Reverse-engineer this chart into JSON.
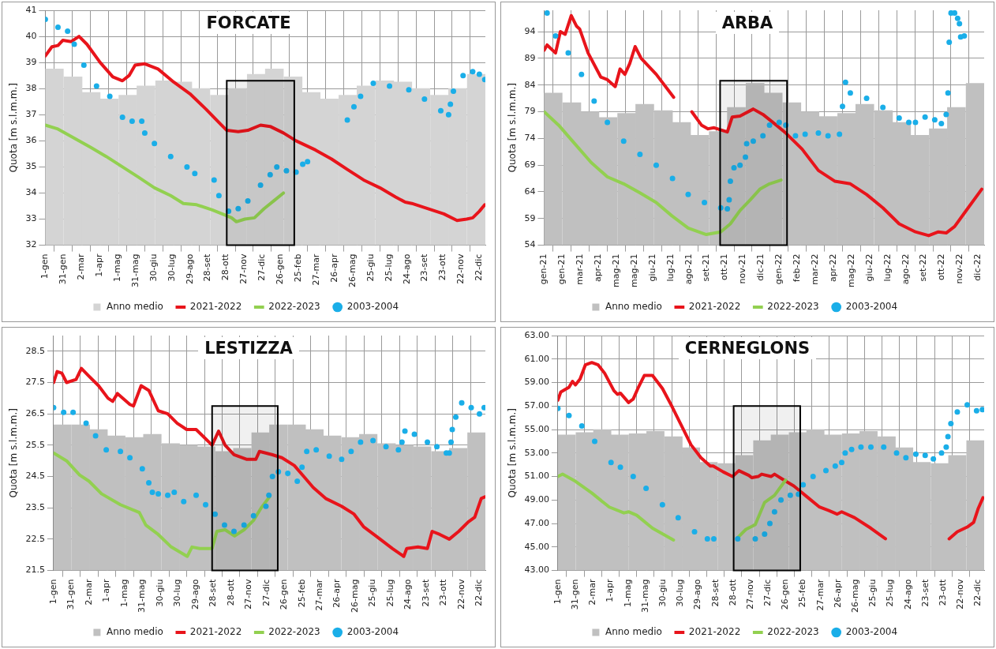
{
  "chart_data": [
    {
      "type": "line",
      "title": "FORCATE",
      "ylabel": "Quota [m s.l.m.m.]",
      "xlim": [
        "2021-01-01",
        "2023-01-01"
      ],
      "ylim": [
        32,
        41
      ],
      "xticks": [
        {
          "value": "2021-01-01",
          "label": "1-gen"
        },
        {
          "value": "2021-01-31",
          "label": "31-gen"
        },
        {
          "value": "2021-03-02",
          "label": "2-mar"
        },
        {
          "value": "2021-04-01",
          "label": "1-apr"
        },
        {
          "value": "2021-05-01",
          "label": "1-mag"
        },
        {
          "value": "2021-05-31",
          "label": "31-mag"
        },
        {
          "value": "2021-06-30",
          "label": "30-giu"
        },
        {
          "value": "2021-07-30",
          "label": "30-lug"
        },
        {
          "value": "2021-08-29",
          "label": "29-ago"
        },
        {
          "value": "2021-09-28",
          "label": "28-set"
        },
        {
          "value": "2021-10-28",
          "label": "28-ott"
        },
        {
          "value": "2021-11-27",
          "label": "27-nov"
        },
        {
          "value": "2021-12-27",
          "label": "27-dic"
        },
        {
          "value": "2022-01-26",
          "label": "26-gen"
        },
        {
          "value": "2022-02-25",
          "label": "25-feb"
        },
        {
          "value": "2022-03-27",
          "label": "27-mar"
        },
        {
          "value": "2022-04-26",
          "label": "26-apr"
        },
        {
          "value": "2022-05-26",
          "label": "26-mag"
        },
        {
          "value": "2022-06-25",
          "label": "25-giu"
        },
        {
          "value": "2022-07-25",
          "label": "25-lug"
        },
        {
          "value": "2022-08-24",
          "label": "24-ago"
        },
        {
          "value": "2022-09-23",
          "label": "23-set"
        },
        {
          "value": "2022-10-23",
          "label": "23-ott"
        },
        {
          "value": "2022-11-22",
          "label": "22-nov"
        },
        {
          "value": "2022-12-22",
          "label": "22-dic"
        }
      ],
      "yticks": [
        32,
        33,
        34,
        35,
        36,
        37,
        38,
        39,
        40,
        41
      ],
      "grid": true,
      "legend": "bottom",
      "bands": [
        {
          "axis": "x",
          "from": "2021-10-29",
          "to": "2022-02-18",
          "color": "#000000"
        }
      ],
      "series": [
        {
          "name": "Anno medio",
          "type": "bar",
          "color": "#d4d4d4",
          "x": [
            "2021-01-16",
            "2021-02-16",
            "2021-03-18",
            "2021-04-17",
            "2021-05-18",
            "2021-06-17",
            "2021-07-18",
            "2021-08-17",
            "2021-09-16",
            "2021-10-17",
            "2021-11-16",
            "2021-12-17",
            "2022-01-16",
            "2022-02-16",
            "2022-03-18",
            "2022-04-17",
            "2022-05-18",
            "2022-06-17",
            "2022-07-18",
            "2022-08-17",
            "2022-09-16",
            "2022-10-17",
            "2022-11-16",
            "2022-12-17"
          ],
          "values": [
            38.75,
            38.45,
            37.85,
            37.6,
            37.75,
            38.1,
            38.3,
            38.25,
            38.0,
            37.75,
            38.0,
            38.55,
            38.75,
            38.45,
            37.85,
            37.6,
            37.75,
            38.1,
            38.3,
            38.25,
            38.0,
            37.75,
            38.0,
            38.55
          ]
        },
        {
          "name": "2021-2022",
          "type": "line",
          "color": "#e8141b",
          "x": [
            "2021-01-01",
            "2021-01-12",
            "2021-01-22",
            "2021-01-30",
            "2021-02-13",
            "2021-02-26",
            "2021-03-11",
            "2021-04-02",
            "2021-04-23",
            "2021-05-09",
            "2021-05-20",
            "2021-05-30",
            "2021-06-15",
            "2021-07-07",
            "2021-08-02",
            "2021-08-29",
            "2021-09-25",
            "2021-10-16",
            "2021-10-29",
            "2021-11-17",
            "2021-12-03",
            "2021-12-24",
            "2022-01-09",
            "2022-01-31",
            "2022-02-21",
            "2022-03-25",
            "2022-04-21",
            "2022-05-17",
            "2022-06-13",
            "2022-07-10",
            "2022-08-05",
            "2022-08-21",
            "2022-09-01",
            "2022-09-28",
            "2022-10-24",
            "2022-11-15",
            "2022-12-01",
            "2022-12-11",
            "2022-12-22",
            "2022-12-31"
          ],
          "values": [
            39.25,
            39.6,
            39.65,
            39.85,
            39.8,
            40.0,
            39.7,
            39.0,
            38.45,
            38.3,
            38.5,
            38.9,
            38.95,
            38.75,
            38.25,
            37.8,
            37.2,
            36.7,
            36.4,
            36.35,
            36.4,
            36.6,
            36.55,
            36.3,
            36.0,
            35.65,
            35.3,
            34.9,
            34.5,
            34.2,
            33.85,
            33.65,
            33.6,
            33.4,
            33.2,
            32.95,
            33.0,
            33.05,
            33.3,
            33.55
          ]
        },
        {
          "name": "2022-2023",
          "type": "line",
          "color": "#92d050",
          "x": [
            "2021-01-01",
            "2021-01-22",
            "2021-02-18",
            "2021-03-17",
            "2021-04-12",
            "2021-05-09",
            "2021-06-05",
            "2021-07-01",
            "2021-07-28",
            "2021-08-18",
            "2021-09-09",
            "2021-10-05",
            "2021-10-27",
            "2021-11-06",
            "2021-11-14",
            "2021-11-28",
            "2021-12-14",
            "2021-12-30",
            "2022-01-15",
            "2022-01-31"
          ],
          "values": [
            36.6,
            36.45,
            36.1,
            35.75,
            35.4,
            35.0,
            34.6,
            34.2,
            33.9,
            33.6,
            33.55,
            33.35,
            33.15,
            33.05,
            32.9,
            33.0,
            33.05,
            33.4,
            33.7,
            34.0
          ]
        },
        {
          "name": "2003-2004",
          "type": "scatter",
          "marker": "circle",
          "color": "#1aaee8",
          "x": [
            "2021-01-01",
            "2021-01-22",
            "2021-02-07",
            "2021-02-18",
            "2021-03-06",
            "2021-03-27",
            "2021-04-18",
            "2021-05-09",
            "2021-05-25",
            "2021-06-10",
            "2021-06-15",
            "2021-07-01",
            "2021-07-28",
            "2021-08-24",
            "2021-09-06",
            "2021-10-08",
            "2021-10-16",
            "2021-11-01",
            "2021-11-17",
            "2021-12-03",
            "2021-12-24",
            "2022-01-09",
            "2022-01-20",
            "2022-02-05",
            "2022-02-21",
            "2022-03-04",
            "2022-03-12",
            "2022-05-17",
            "2022-05-28",
            "2022-06-08",
            "2022-06-29",
            "2022-07-26",
            "2022-08-27",
            "2022-09-22",
            "2022-10-19",
            "2022-11-01",
            "2022-11-04",
            "2022-11-09",
            "2022-11-25",
            "2022-12-11",
            "2022-12-22",
            "2022-12-31"
          ],
          "values": [
            40.65,
            40.35,
            40.2,
            39.7,
            38.9,
            38.1,
            37.7,
            36.9,
            36.75,
            36.75,
            36.3,
            35.9,
            35.4,
            35.0,
            34.75,
            34.5,
            33.9,
            33.3,
            33.4,
            33.7,
            34.3,
            34.7,
            35.0,
            34.85,
            34.8,
            35.1,
            35.2,
            36.8,
            37.3,
            37.7,
            38.2,
            38.1,
            37.95,
            37.6,
            37.15,
            37.0,
            37.4,
            37.9,
            38.5,
            38.65,
            38.55,
            38.35
          ]
        }
      ]
    },
    {
      "type": "line",
      "title": "ARBA",
      "ylabel": "Quota [m s.l.m.m.]",
      "xlim": [
        "2021-01-01",
        "2023-01-01"
      ],
      "ylim": [
        54,
        98
      ],
      "xticks": [
        {
          "value": "2021-01-01",
          "label": "gen-21"
        },
        {
          "value": "2021-01-31",
          "label": "gen-21"
        },
        {
          "value": "2021-03-02",
          "label": "mar-21"
        },
        {
          "value": "2021-04-01",
          "label": "apr-21"
        },
        {
          "value": "2021-05-01",
          "label": "mag-21"
        },
        {
          "value": "2021-05-31",
          "label": "mag-21"
        },
        {
          "value": "2021-06-30",
          "label": "giu-21"
        },
        {
          "value": "2021-07-30",
          "label": "lug-21"
        },
        {
          "value": "2021-08-29",
          "label": "ago-21"
        },
        {
          "value": "2021-09-28",
          "label": "set-21"
        },
        {
          "value": "2021-10-28",
          "label": "ott-21"
        },
        {
          "value": "2021-11-27",
          "label": "nov-21"
        },
        {
          "value": "2021-12-27",
          "label": "dic-21"
        },
        {
          "value": "2022-01-26",
          "label": "gen-22"
        },
        {
          "value": "2022-02-25",
          "label": "feb-22"
        },
        {
          "value": "2022-03-27",
          "label": "mar-22"
        },
        {
          "value": "2022-04-26",
          "label": "apr-22"
        },
        {
          "value": "2022-05-26",
          "label": "mag-22"
        },
        {
          "value": "2022-06-25",
          "label": "giu-22"
        },
        {
          "value": "2022-07-25",
          "label": "lug-22"
        },
        {
          "value": "2022-08-24",
          "label": "ago-22"
        },
        {
          "value": "2022-09-23",
          "label": "set-22"
        },
        {
          "value": "2022-10-23",
          "label": "ott-22"
        },
        {
          "value": "2022-11-22",
          "label": "nov-22"
        },
        {
          "value": "2022-12-22",
          "label": "dic-22"
        }
      ],
      "yticks": [
        54,
        59,
        64,
        69,
        74,
        79,
        84,
        89,
        94
      ],
      "grid": true,
      "legend": "bottom",
      "bands": [
        {
          "axis": "x",
          "from": "2021-10-20",
          "to": "2022-02-08",
          "color": "#000000"
        }
      ],
      "series": [
        {
          "name": "Anno medio",
          "type": "bar",
          "color": "#c0c0c0",
          "x": [
            "2021-01-16",
            "2021-02-16",
            "2021-03-18",
            "2021-04-17",
            "2021-05-18",
            "2021-06-17",
            "2021-07-18",
            "2021-08-17",
            "2021-09-16",
            "2021-10-17",
            "2021-11-16",
            "2021-12-17",
            "2022-01-16",
            "2022-02-16",
            "2022-03-18",
            "2022-04-17",
            "2022-05-18",
            "2022-06-17",
            "2022-07-18",
            "2022-08-17",
            "2022-09-16",
            "2022-10-17",
            "2022-11-16",
            "2022-12-17"
          ],
          "values": [
            82.5,
            80.7,
            79.0,
            77.9,
            78.7,
            80.4,
            79.2,
            77.0,
            74.6,
            75.3,
            79.8,
            84.3,
            82.5,
            80.7,
            79.0,
            78.1,
            78.7,
            80.4,
            79.2,
            77.0,
            74.6,
            75.8,
            79.8,
            84.3
          ]
        },
        {
          "name": "2021-2022",
          "type": "line",
          "color": "#e8141b",
          "x": [
            "2021-01-01",
            "2021-01-06",
            "2021-01-20",
            "2021-01-28",
            "2021-02-05",
            "2021-02-15",
            "2021-02-24",
            "2021-03-01",
            "2021-03-15",
            "2021-04-05",
            "2021-04-16",
            "2021-04-29",
            "2021-05-07",
            "2021-05-15",
            "2021-05-23",
            "2021-06-01",
            "2021-06-11",
            "2021-07-06",
            "2021-08-04",
            "2021-08-19",
            "2021-09-03",
            "2021-09-19",
            "2021-09-30",
            "2021-10-10",
            "2021-11-01",
            "2021-11-09",
            "2021-11-22",
            "2021-12-14",
            "2021-12-30",
            "2022-01-21",
            "2022-02-06",
            "2022-03-05",
            "2022-04-01",
            "2022-04-28",
            "2022-05-24",
            "2022-06-20",
            "2022-07-17",
            "2022-08-13",
            "2022-09-09",
            "2022-10-01",
            "2022-10-17",
            "2022-10-30",
            "2022-11-13",
            "2022-11-29",
            "2022-12-28"
          ],
          "values": [
            90.5,
            91.5,
            90,
            94,
            93.5,
            97,
            95,
            94.5,
            90,
            85.5,
            85,
            83.7,
            87,
            86,
            88,
            91.2,
            89,
            86,
            81.7,
            null,
            79,
            76.5,
            75.8,
            76,
            75.2,
            78,
            78.2,
            79.5,
            78.5,
            76.5,
            75,
            72,
            68,
            66,
            65.5,
            63.5,
            61,
            58,
            56.5,
            55.8,
            56.5,
            56.3,
            57.5,
            60,
            64.5
          ]
        },
        {
          "name": "2022-2023",
          "type": "line",
          "color": "#92d050",
          "x": [
            "2021-01-01",
            "2021-01-25",
            "2021-02-21",
            "2021-03-20",
            "2021-04-16",
            "2021-05-13",
            "2021-06-09",
            "2021-07-06",
            "2021-08-01",
            "2021-08-28",
            "2021-09-27",
            "2021-10-21",
            "2021-11-06",
            "2021-11-22",
            "2021-12-09",
            "2021-12-25",
            "2022-01-10",
            "2022-01-29"
          ],
          "values": [
            79,
            76.5,
            73,
            69.5,
            66.8,
            65.5,
            63.8,
            62,
            59.5,
            57.2,
            56,
            56.5,
            58,
            60.5,
            62.5,
            64.5,
            65.5,
            66.2
          ]
        },
        {
          "name": "2003-2004",
          "type": "scatter",
          "marker": "circle",
          "color": "#1aaee8",
          "x": [
            "2021-01-06",
            "2021-01-20",
            "2021-02-10",
            "2021-03-04",
            "2021-03-25",
            "2021-04-16",
            "2021-05-13",
            "2021-06-09",
            "2021-07-06",
            "2021-08-02",
            "2021-08-28",
            "2021-09-24",
            "2021-10-21",
            "2021-11-01",
            "2021-11-04",
            "2021-11-06",
            "2021-11-12",
            "2021-11-22",
            "2021-12-01",
            "2021-12-03",
            "2021-12-14",
            "2021-12-30",
            "2022-01-10",
            "2022-01-26",
            "2022-02-06",
            "2022-02-22",
            "2022-03-10",
            "2022-04-01",
            "2022-04-17",
            "2022-05-06",
            "2022-05-11",
            "2022-05-16",
            "2022-05-24",
            "2022-06-20",
            "2022-07-17",
            "2022-08-13",
            "2022-08-29",
            "2022-09-09",
            "2022-09-25",
            "2022-10-11",
            "2022-10-22",
            "2022-10-30",
            "2022-11-02",
            "2022-11-04",
            "2022-11-07",
            "2022-11-13",
            "2022-11-18",
            "2022-11-21",
            "2022-11-23",
            "2022-11-29"
          ],
          "values": [
            97.5,
            93.2,
            90,
            86,
            81,
            77,
            73.5,
            71,
            69,
            66.5,
            63.5,
            62,
            61,
            60.8,
            62.5,
            66,
            68.5,
            69,
            70.5,
            73,
            73.5,
            74.5,
            76.5,
            77,
            76.5,
            74.5,
            74.8,
            75,
            74.5,
            74.8,
            80,
            84.5,
            82.5,
            81.5,
            79.8,
            77.8,
            77,
            77,
            78,
            77.5,
            76.8,
            78.5,
            82.5,
            92,
            97.5,
            97.5,
            96.5,
            95.5,
            93,
            93.2
          ]
        }
      ]
    },
    {
      "type": "line",
      "title": "LESTIZZA",
      "ylabel": "Quota [m s.l.m.m.]",
      "xlim": [
        "2021-01-01",
        "2023-01-01"
      ],
      "ylim": [
        21.5,
        29
      ],
      "xticks": [
        {
          "value": "2021-01-01",
          "label": "1-gen"
        },
        {
          "value": "2021-01-31",
          "label": "31-gen"
        },
        {
          "value": "2021-03-02",
          "label": "2-mar"
        },
        {
          "value": "2021-04-01",
          "label": "1-apr"
        },
        {
          "value": "2021-05-01",
          "label": "1-mag"
        },
        {
          "value": "2021-05-31",
          "label": "31-mag"
        },
        {
          "value": "2021-06-30",
          "label": "30-giu"
        },
        {
          "value": "2021-07-30",
          "label": "30-lug"
        },
        {
          "value": "2021-08-29",
          "label": "29-ago"
        },
        {
          "value": "2021-09-28",
          "label": "28-set"
        },
        {
          "value": "2021-10-28",
          "label": "28-ott"
        },
        {
          "value": "2021-11-27",
          "label": "27-nov"
        },
        {
          "value": "2021-12-27",
          "label": "27-dic"
        },
        {
          "value": "2022-01-26",
          "label": "26-gen"
        },
        {
          "value": "2022-02-25",
          "label": "25-feb"
        },
        {
          "value": "2022-03-27",
          "label": "27-mar"
        },
        {
          "value": "2022-04-26",
          "label": "26-apr"
        },
        {
          "value": "2022-05-26",
          "label": "26-mag"
        },
        {
          "value": "2022-06-25",
          "label": "25-giu"
        },
        {
          "value": "2022-07-25",
          "label": "25-lug"
        },
        {
          "value": "2022-08-24",
          "label": "24-ago"
        },
        {
          "value": "2022-09-23",
          "label": "23-set"
        },
        {
          "value": "2022-10-23",
          "label": "23-ott"
        },
        {
          "value": "2022-11-22",
          "label": "22-nov"
        },
        {
          "value": "2022-12-22",
          "label": "22-dic"
        }
      ],
      "yticks": [
        21.5,
        22.5,
        23.5,
        24.5,
        25.5,
        26.5,
        27.5,
        28.5
      ],
      "grid": true,
      "legend": "bottom",
      "bands": [
        {
          "axis": "x",
          "from": "2021-09-26",
          "to": "2022-01-15",
          "color": "#000000"
        }
      ],
      "series": [
        {
          "name": "Anno medio",
          "type": "bar",
          "color": "#c0c0c0",
          "x": [
            "2021-01-16",
            "2021-02-16",
            "2021-03-18",
            "2021-04-17",
            "2021-05-18",
            "2021-06-17",
            "2021-07-18",
            "2021-08-17",
            "2021-09-16",
            "2021-10-17",
            "2021-11-16",
            "2021-12-17",
            "2022-01-16",
            "2022-02-16",
            "2022-03-18",
            "2022-04-17",
            "2022-05-18",
            "2022-06-17",
            "2022-07-18",
            "2022-08-17",
            "2022-09-16",
            "2022-10-17",
            "2022-11-16",
            "2022-12-17"
          ],
          "values": [
            26.15,
            26.15,
            26.0,
            25.8,
            25.75,
            25.85,
            25.55,
            25.5,
            25.45,
            25.3,
            25.4,
            25.9,
            26.15,
            26.15,
            26.0,
            25.8,
            25.75,
            25.85,
            25.55,
            25.5,
            25.45,
            25.3,
            25.4,
            25.9
          ]
        },
        {
          "name": "2021-2022",
          "type": "line",
          "color": "#e8141b",
          "x": [
            "2021-01-01",
            "2021-01-07",
            "2021-01-15",
            "2021-01-23",
            "2021-02-08",
            "2021-02-17",
            "2021-03-02",
            "2021-03-18",
            "2021-04-03",
            "2021-04-11",
            "2021-04-19",
            "2021-05-10",
            "2021-05-16",
            "2021-05-29",
            "2021-06-11",
            "2021-06-27",
            "2021-07-13",
            "2021-07-29",
            "2021-08-14",
            "2021-08-30",
            "2021-09-10",
            "2021-09-26",
            "2021-10-07",
            "2021-10-18",
            "2021-11-02",
            "2021-11-23",
            "2021-12-09",
            "2021-12-15",
            "2022-01-05",
            "2022-01-22",
            "2022-02-12",
            "2022-02-28",
            "2022-03-16",
            "2022-04-06",
            "2022-05-03",
            "2022-05-24",
            "2022-06-09",
            "2022-06-30",
            "2022-07-28",
            "2022-08-16",
            "2022-08-21",
            "2022-09-09",
            "2022-09-25",
            "2022-10-03",
            "2022-10-16",
            "2022-11-01",
            "2022-11-17",
            "2022-12-03",
            "2022-12-14",
            "2022-12-25",
            "2022-12-31"
          ],
          "values": [
            27.5,
            27.85,
            27.8,
            27.5,
            27.6,
            27.95,
            27.7,
            27.4,
            27.0,
            26.9,
            27.15,
            26.8,
            26.75,
            27.4,
            27.25,
            26.6,
            26.5,
            26.2,
            26.0,
            26.0,
            25.8,
            25.5,
            25.95,
            25.5,
            25.2,
            25.05,
            25.05,
            25.3,
            25.2,
            25.1,
            24.85,
            24.5,
            24.15,
            23.8,
            23.55,
            23.3,
            22.9,
            22.6,
            22.2,
            21.95,
            22.2,
            22.25,
            22.2,
            22.75,
            22.65,
            22.5,
            22.75,
            23.05,
            23.2,
            23.8,
            23.85
          ]
        },
        {
          "name": "2022-2023",
          "type": "line",
          "color": "#92d050",
          "x": [
            "2021-01-01",
            "2021-01-23",
            "2021-02-14",
            "2021-03-02",
            "2021-03-23",
            "2021-04-24",
            "2021-05-26",
            "2021-06-06",
            "2021-06-27",
            "2021-07-19",
            "2021-08-15",
            "2021-08-23",
            "2021-09-05",
            "2021-09-26",
            "2021-10-04",
            "2021-10-18",
            "2021-11-03",
            "2021-11-19",
            "2021-12-05",
            "2021-12-18",
            "2022-01-01"
          ],
          "values": [
            25.25,
            25.0,
            24.55,
            24.35,
            23.95,
            23.6,
            23.35,
            22.95,
            22.65,
            22.25,
            21.95,
            22.25,
            22.2,
            22.2,
            22.75,
            22.8,
            22.6,
            22.8,
            23.1,
            23.5,
            23.85
          ]
        },
        {
          "name": "2003-2004",
          "type": "scatter",
          "marker": "circle",
          "color": "#1aaee8",
          "x": [
            "2021-01-01",
            "2021-01-18",
            "2021-02-03",
            "2021-02-25",
            "2021-03-13",
            "2021-03-31",
            "2021-04-24",
            "2021-05-10",
            "2021-05-31",
            "2021-06-11",
            "2021-06-17",
            "2021-06-27",
            "2021-07-13",
            "2021-07-24",
            "2021-08-09",
            "2021-08-30",
            "2021-09-15",
            "2021-10-01",
            "2021-10-17",
            "2021-11-02",
            "2021-11-19",
            "2021-12-05",
            "2021-12-26",
            "2021-12-31",
            "2022-01-06",
            "2022-01-16",
            "2022-02-01",
            "2022-02-17",
            "2022-02-25",
            "2022-03-05",
            "2022-03-21",
            "2022-04-12",
            "2022-05-03",
            "2022-05-19",
            "2022-06-04",
            "2022-06-25",
            "2022-07-17",
            "2022-08-07",
            "2022-08-13",
            "2022-08-18",
            "2022-09-03",
            "2022-09-25",
            "2022-10-11",
            "2022-10-27",
            "2022-11-01",
            "2022-11-04",
            "2022-11-06",
            "2022-11-12",
            "2022-11-22",
            "2022-12-08",
            "2022-12-22",
            "2022-12-30"
          ],
          "values": [
            26.7,
            26.55,
            26.55,
            26.2,
            25.8,
            25.35,
            25.3,
            25.1,
            24.75,
            24.3,
            24.0,
            23.95,
            23.9,
            24.0,
            23.7,
            23.9,
            23.6,
            23.3,
            22.95,
            22.75,
            22.95,
            23.25,
            23.55,
            23.9,
            24.5,
            24.65,
            24.6,
            24.35,
            24.8,
            25.3,
            25.35,
            25.15,
            25.05,
            25.3,
            25.6,
            25.65,
            25.45,
            25.35,
            25.6,
            25.95,
            25.85,
            25.6,
            25.45,
            25.25,
            25.25,
            25.6,
            26.0,
            26.4,
            26.85,
            26.7,
            26.5,
            26.7
          ]
        }
      ]
    },
    {
      "type": "line",
      "title": "CERNEGLONS",
      "ylabel": "Quota [m s.l.m.m.]",
      "xlim": [
        "2021-01-01",
        "2023-01-01"
      ],
      "ylim": [
        43,
        63
      ],
      "xticks": [
        {
          "value": "2021-01-01",
          "label": "1-gen"
        },
        {
          "value": "2021-01-31",
          "label": "31-gen"
        },
        {
          "value": "2021-03-02",
          "label": "2-mar"
        },
        {
          "value": "2021-04-01",
          "label": "1-apr"
        },
        {
          "value": "2021-05-01",
          "label": "1-mag"
        },
        {
          "value": "2021-05-31",
          "label": "31-mag"
        },
        {
          "value": "2021-06-30",
          "label": "30-giu"
        },
        {
          "value": "2021-07-30",
          "label": "30-lug"
        },
        {
          "value": "2021-08-29",
          "label": "29-ago"
        },
        {
          "value": "2021-09-28",
          "label": "28-set"
        },
        {
          "value": "2021-10-28",
          "label": "28-ott"
        },
        {
          "value": "2021-11-27",
          "label": "27-nov"
        },
        {
          "value": "2021-12-27",
          "label": "27-dic"
        },
        {
          "value": "2022-01-26",
          "label": "26-gen"
        },
        {
          "value": "2022-02-25",
          "label": "25-feb"
        },
        {
          "value": "2022-03-27",
          "label": "27-mar"
        },
        {
          "value": "2022-04-26",
          "label": "26-apr"
        },
        {
          "value": "2022-05-26",
          "label": "26-mag"
        },
        {
          "value": "2022-06-25",
          "label": "25-giu"
        },
        {
          "value": "2022-07-25",
          "label": "25-lug"
        },
        {
          "value": "2022-08-24",
          "label": "24-ago"
        },
        {
          "value": "2022-09-23",
          "label": "23-set"
        },
        {
          "value": "2022-10-23",
          "label": "23-ott"
        },
        {
          "value": "2022-11-22",
          "label": "22-nov"
        },
        {
          "value": "2022-12-22",
          "label": "22-dic"
        }
      ],
      "yticks": [
        {
          "value": 43,
          "label": "43.00"
        },
        {
          "value": 45,
          "label": "45.00"
        },
        {
          "value": 47,
          "label": "47.00"
        },
        {
          "value": 49,
          "label": "49.00"
        },
        {
          "value": 51,
          "label": "51.00"
        },
        {
          "value": 53,
          "label": "53.00"
        },
        {
          "value": 55,
          "label": "55.00"
        },
        {
          "value": 57,
          "label": "57.00"
        },
        {
          "value": 59,
          "label": "59.00"
        },
        {
          "value": 61,
          "label": "61.00"
        },
        {
          "value": 63,
          "label": "63.00"
        }
      ],
      "grid": true,
      "legend": "bottom",
      "bands": [
        {
          "axis": "x",
          "from": "2021-10-29",
          "to": "2022-02-20",
          "color": "#000000"
        }
      ],
      "series": [
        {
          "name": "Anno medio",
          "type": "bar",
          "color": "#c0c0c0",
          "x": [
            "2021-01-16",
            "2021-02-16",
            "2021-03-18",
            "2021-04-17",
            "2021-05-18",
            "2021-06-17",
            "2021-07-18",
            "2021-08-17",
            "2021-09-16",
            "2021-10-17",
            "2021-11-16",
            "2021-12-17",
            "2022-01-16",
            "2022-02-16",
            "2022-03-18",
            "2022-04-17",
            "2022-05-18",
            "2022-06-17",
            "2022-07-18",
            "2022-08-17",
            "2022-09-16",
            "2022-10-17",
            "2022-11-16",
            "2022-12-17"
          ],
          "values": [
            54.55,
            54.75,
            55.0,
            54.55,
            54.65,
            54.85,
            54.4,
            53.45,
            52.2,
            52.1,
            52.8,
            54.05,
            54.55,
            54.75,
            55.0,
            54.55,
            54.65,
            54.85,
            54.4,
            53.45,
            52.2,
            52.1,
            52.8,
            54.05
          ]
        },
        {
          "name": "2021-2022",
          "type": "line",
          "color": "#e8141b",
          "x": [
            "2021-01-01",
            "2021-01-06",
            "2021-01-20",
            "2021-01-26",
            "2021-01-31",
            "2021-02-08",
            "2021-02-17",
            "2021-02-28",
            "2021-03-11",
            "2021-03-22",
            "2021-04-07",
            "2021-04-13",
            "2021-04-18",
            "2021-05-02",
            "2021-05-10",
            "2021-05-18",
            "2021-05-29",
            "2021-06-12",
            "2021-06-29",
            "2021-07-15",
            "2021-08-01",
            "2021-08-17",
            "2021-09-03",
            "2021-09-19",
            "2021-09-24",
            "2021-10-11",
            "2021-10-27",
            "2021-11-07",
            "2021-11-24",
            "2021-11-29",
            "2021-12-10",
            "2021-12-16",
            "2022-01-01",
            "2022-01-07",
            "2022-01-23",
            "2022-02-09",
            "2022-03-03",
            "2022-03-25",
            "2022-04-10",
            "2022-04-24",
            "2022-05-02",
            "2022-05-24",
            "2022-06-21",
            "2022-07-16",
            "2022-08-24",
            "2022-11-02",
            "2022-11-16",
            "2022-12-03",
            "2022-12-14",
            "2022-12-22",
            "2022-12-30"
          ],
          "values": [
            57.5,
            58.2,
            58.6,
            59.1,
            58.8,
            59.3,
            60.5,
            60.7,
            60.5,
            59.8,
            58.3,
            58.0,
            58.1,
            57.3,
            57.6,
            58.5,
            59.6,
            59.6,
            58.5,
            57.0,
            55.3,
            53.7,
            52.6,
            51.9,
            51.9,
            51.4,
            51.0,
            51.5,
            51.1,
            50.9,
            51.0,
            51.2,
            51.0,
            51.2,
            50.7,
            50.2,
            49.3,
            48.4,
            48.1,
            47.8,
            48.0,
            47.5,
            46.6,
            45.7,
            null,
            45.7,
            46.3,
            46.7,
            47.1,
            48.3,
            49.2
          ]
        },
        {
          "name": "2022-2023",
          "type": "line",
          "color": "#92d050",
          "x": [
            "2021-01-01",
            "2021-01-09",
            "2021-01-31",
            "2021-02-28",
            "2021-03-30",
            "2021-04-24",
            "2021-05-02",
            "2021-05-16",
            "2021-06-12",
            "2021-07-18",
            "2021-09-08",
            "2021-11-05",
            "2021-11-19",
            "2021-12-05",
            "2021-12-21",
            "2022-01-07",
            "2022-01-26"
          ],
          "values": [
            51.0,
            51.2,
            50.6,
            49.6,
            48.4,
            47.9,
            48.0,
            47.7,
            46.6,
            45.6,
            null,
            45.8,
            46.5,
            46.9,
            48.8,
            49.4,
            50.7
          ]
        },
        {
          "name": "2003-2004",
          "type": "scatter",
          "marker": "circle",
          "color": "#1aaee8",
          "x": [
            "2021-01-01",
            "2021-01-20",
            "2021-02-11",
            "2021-03-05",
            "2021-04-02",
            "2021-04-18",
            "2021-05-10",
            "2021-06-01",
            "2021-06-29",
            "2021-07-26",
            "2021-08-23",
            "2021-09-14",
            "2021-09-25",
            "2021-11-05",
            "2021-12-05",
            "2021-12-21",
            "2021-12-30",
            "2022-01-07",
            "2022-01-18",
            "2022-02-03",
            "2022-02-17",
            "2022-02-25",
            "2022-03-14",
            "2022-04-05",
            "2022-04-21",
            "2022-05-02",
            "2022-05-08",
            "2022-05-19",
            "2022-06-04",
            "2022-06-21",
            "2022-07-13",
            "2022-08-04",
            "2022-08-20",
            "2022-09-06",
            "2022-09-22",
            "2022-10-06",
            "2022-10-20",
            "2022-10-28",
            "2022-10-31",
            "2022-11-05",
            "2022-11-16",
            "2022-12-03",
            "2022-12-19",
            "2022-12-29"
          ],
          "values": [
            56.8,
            56.2,
            55.3,
            54.0,
            52.2,
            51.8,
            51.0,
            50.0,
            48.6,
            47.5,
            46.3,
            45.7,
            45.7,
            45.7,
            45.7,
            46.1,
            47.0,
            48.0,
            49.0,
            49.4,
            49.5,
            50.3,
            51.0,
            51.5,
            51.9,
            52.2,
            53.0,
            53.3,
            53.5,
            53.5,
            53.5,
            53.0,
            52.6,
            52.9,
            52.8,
            52.5,
            53.0,
            53.5,
            54.4,
            55.5,
            56.5,
            57.1,
            56.6,
            56.7
          ]
        }
      ]
    }
  ]
}
